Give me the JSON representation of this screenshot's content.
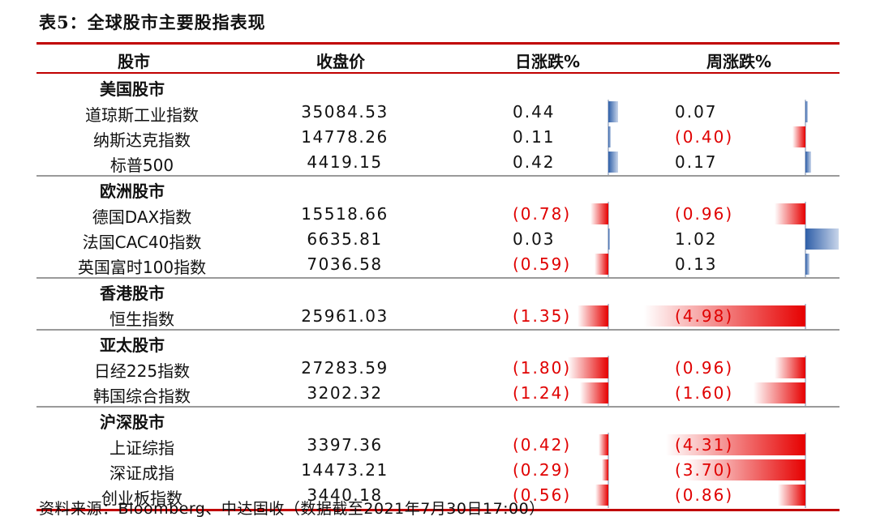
{
  "title": "表5：全球股市主要股指表现",
  "headers": {
    "market": "股市",
    "close": "收盘价",
    "day": "日涨跌%",
    "week": "周涨跌%"
  },
  "groups": [
    {
      "name": "美国股市",
      "rows": [
        {
          "name": "道琼斯工业指数",
          "close": "35084.53",
          "day": "0.44",
          "day_value": 0.44,
          "week": "0.07",
          "week_value": 0.07
        },
        {
          "name": "纳斯达克指数",
          "close": "14778.26",
          "day": "0.11",
          "day_value": 0.11,
          "week": "(0.40)",
          "week_value": -0.4
        },
        {
          "name": "标普500",
          "close": "4419.15",
          "day": "0.42",
          "day_value": 0.42,
          "week": "0.17",
          "week_value": 0.17
        }
      ]
    },
    {
      "name": "欧洲股市",
      "rows": [
        {
          "name": "德国DAX指数",
          "close": "15518.66",
          "day": "(0.78)",
          "day_value": -0.78,
          "week": "(0.96)",
          "week_value": -0.96
        },
        {
          "name": "法国CAC40指数",
          "close": "6635.81",
          "day": "0.03",
          "day_value": 0.03,
          "week": "1.02",
          "week_value": 1.02
        },
        {
          "name": "英国富时100指数",
          "close": "7036.58",
          "day": "(0.59)",
          "day_value": -0.59,
          "week": "0.13",
          "week_value": 0.13
        }
      ]
    },
    {
      "name": "香港股市",
      "rows": [
        {
          "name": "恒生指数",
          "close": "25961.03",
          "day": "(1.35)",
          "day_value": -1.35,
          "week": "(4.98)",
          "week_value": -4.98
        }
      ]
    },
    {
      "name": "亚太股市",
      "rows": [
        {
          "name": "日经225指数",
          "close": "27283.59",
          "day": "(1.80)",
          "day_value": -1.8,
          "week": "(0.96)",
          "week_value": -0.96
        },
        {
          "name": "韩国综合指数",
          "close": "3202.32",
          "day": "(1.24)",
          "day_value": -1.24,
          "week": "(1.60)",
          "week_value": -1.6
        }
      ]
    },
    {
      "name": "沪深股市",
      "rows": [
        {
          "name": "上证综指",
          "close": "3397.36",
          "day": "(0.42)",
          "day_value": -0.42,
          "week": "(4.31)",
          "week_value": -4.31
        },
        {
          "name": "深证成指",
          "close": "14473.21",
          "day": "(0.29)",
          "day_value": -0.29,
          "week": "(3.70)",
          "week_value": -3.7
        },
        {
          "name": "创业板指数",
          "close": "3440.18",
          "day": "(0.56)",
          "day_value": -0.56,
          "week": "(0.86)",
          "week_value": -0.86
        }
      ]
    }
  ],
  "source": "资料来源：Bloomberg、中达固收（数据截至2021年7月30日17:00）",
  "colors": {
    "accent_rule": "#c00000",
    "negative": "#e00000",
    "bar_red": "#e60000",
    "bar_blue": "#2f5fa8"
  }
}
